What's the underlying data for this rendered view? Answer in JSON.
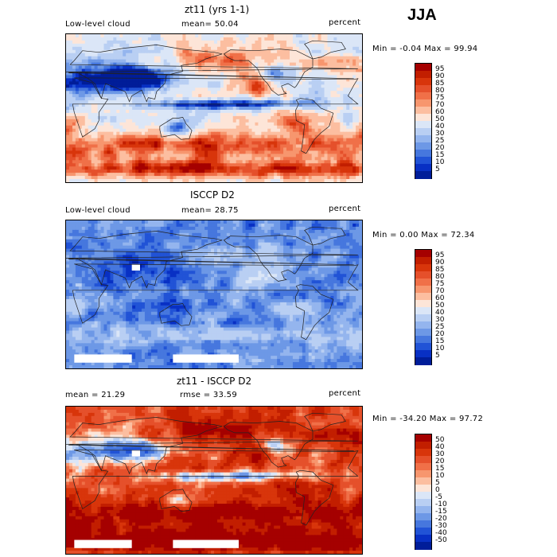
{
  "season": "JJA",
  "panels": [
    {
      "title": "zt11 (yrs 1-1)",
      "left_label": "Low-level cloud",
      "center_label": "mean=  50.04",
      "right_label": "percent",
      "range_label": "Min =  -0.04 Max =  99.94",
      "levels": [
        "95",
        "90",
        "85",
        "80",
        "75",
        "70",
        "60",
        "50",
        "40",
        "30",
        "25",
        "20",
        "15",
        "10",
        "5"
      ],
      "colors": [
        "#a50000",
        "#c21e00",
        "#d8350b",
        "#e5502b",
        "#f07048",
        "#f7966e",
        "#fcbea0",
        "#fde5d8",
        "#dbe6f7",
        "#b9cff3",
        "#94b5ee",
        "#6d98e6",
        "#4677de",
        "#2153d6",
        "#0830c4",
        "#001d99"
      ],
      "palette": "cloud",
      "field": "model"
    },
    {
      "title": "ISCCP D2",
      "left_label": "Low-level cloud",
      "center_label": "mean=  28.75",
      "right_label": "percent",
      "range_label": "Min =   0.00 Max =  72.34",
      "levels": [
        "95",
        "90",
        "85",
        "80",
        "75",
        "70",
        "60",
        "50",
        "40",
        "30",
        "25",
        "20",
        "15",
        "10",
        "5"
      ],
      "colors": [
        "#a50000",
        "#c21e00",
        "#d8350b",
        "#e5502b",
        "#f07048",
        "#f7966e",
        "#fcbea0",
        "#fde5d8",
        "#dbe6f7",
        "#b9cff3",
        "#94b5ee",
        "#6d98e6",
        "#4677de",
        "#2153d6",
        "#0830c4",
        "#001d99"
      ],
      "palette": "cloud",
      "field": "obs"
    },
    {
      "title": "zt11 - ISCCP D2",
      "left_label": "mean =  21.29",
      "center_label": "rmse =  33.59",
      "right_label": "percent",
      "range_label": "Min = -34.20 Max =  97.72",
      "levels": [
        "50",
        "40",
        "30",
        "20",
        "15",
        "10",
        "5",
        "0",
        "-5",
        "-10",
        "-15",
        "-20",
        "-30",
        "-40",
        "-50"
      ],
      "colors": [
        "#a50000",
        "#c21e00",
        "#d8350b",
        "#e5502b",
        "#f07048",
        "#f7966e",
        "#fcbea0",
        "#fde5d8",
        "#dbe6f7",
        "#b9cff3",
        "#94b5ee",
        "#6d98e6",
        "#4677de",
        "#2153d6",
        "#0830c4",
        "#001d99"
      ],
      "palette": "diff",
      "field": "diff"
    }
  ],
  "chart_data": [
    {
      "type": "heatmap",
      "title": "zt11 (yrs 1-1)",
      "variable": "Low-level cloud",
      "units": "percent",
      "mean": 50.04,
      "min": -0.04,
      "max": 99.94,
      "levels": [
        5,
        10,
        15,
        20,
        25,
        30,
        40,
        50,
        60,
        70,
        75,
        80,
        85,
        90,
        95
      ]
    },
    {
      "type": "heatmap",
      "title": "ISCCP D2",
      "variable": "Low-level cloud",
      "units": "percent",
      "mean": 28.75,
      "min": 0.0,
      "max": 72.34,
      "levels": [
        5,
        10,
        15,
        20,
        25,
        30,
        40,
        50,
        60,
        70,
        75,
        80,
        85,
        90,
        95
      ]
    },
    {
      "type": "heatmap",
      "title": "zt11 - ISCCP D2",
      "units": "percent",
      "mean": 21.29,
      "rmse": 33.59,
      "min": -34.2,
      "max": 97.72,
      "levels": [
        -50,
        -40,
        -30,
        -20,
        -15,
        -10,
        -5,
        0,
        5,
        10,
        15,
        20,
        30,
        40,
        50
      ]
    }
  ]
}
